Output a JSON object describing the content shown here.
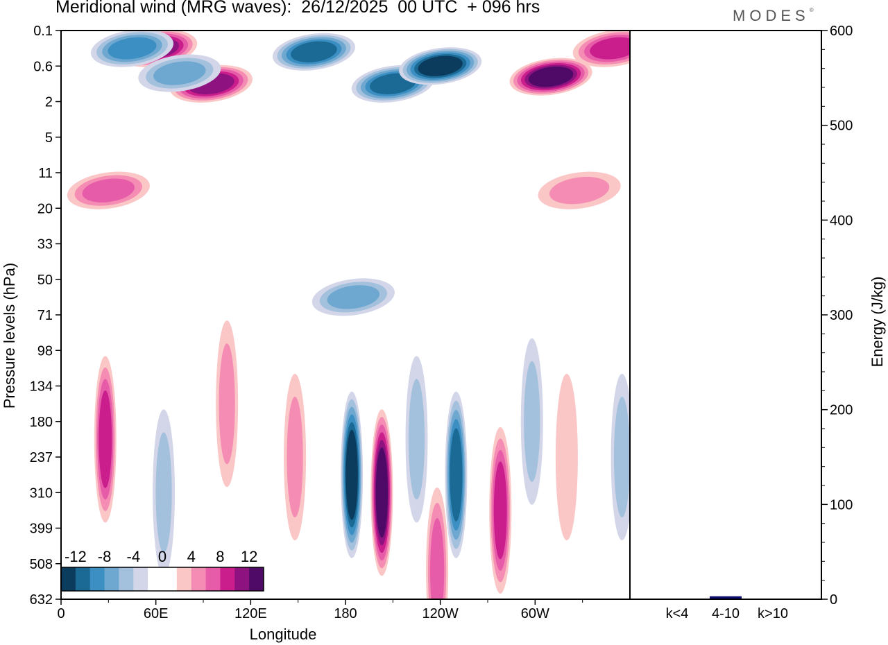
{
  "header": {
    "title": "Meridional wind (MRG waves):  26/12/2025  00 UTC  + 096 hrs",
    "logo": "MODES"
  },
  "chart_data": [
    {
      "type": "heatmap",
      "title": "Meridional wind (MRG waves):  26/12/2025  00 UTC  + 096 hrs",
      "xlabel": "Longitude",
      "ylabel": "Pressure levels (hPa)",
      "x_ticks": [
        "0",
        "60E",
        "120E",
        "180",
        "120W",
        "60W"
      ],
      "x_tick_degrees": [
        0,
        60,
        120,
        180,
        240,
        300
      ],
      "x_range": [
        0,
        360
      ],
      "y_ticks": [
        "0.1",
        "0.6",
        "2",
        "5",
        "11",
        "20",
        "33",
        "50",
        "71",
        "98",
        "134",
        "180",
        "237",
        "310",
        "399",
        "508",
        "632"
      ],
      "colorbar": {
        "labels": [
          "-12",
          "-8",
          "-4",
          "0",
          "4",
          "8",
          "12"
        ],
        "levels": [
          -14,
          -12,
          -10,
          -8,
          -6,
          -4,
          -2,
          2,
          4,
          6,
          8,
          10,
          12,
          14
        ],
        "colors": [
          "#0b3c5d",
          "#1b6a96",
          "#3b8fc2",
          "#6ea7cf",
          "#a3c0dd",
          "#d2d6e8",
          "#ffffff",
          "#ffffff",
          "#fbc6c6",
          "#f48cb4",
          "#e65ca8",
          "#c91e8c",
          "#8e1380",
          "#4e0a66"
        ]
      },
      "features": [
        {
          "lon": 60,
          "level": 0.5,
          "value": 12
        },
        {
          "lon": 95,
          "level": 1.5,
          "value": 12
        },
        {
          "lon": 45,
          "level": 0.5,
          "value": -10
        },
        {
          "lon": 75,
          "level": 1.2,
          "value": -8
        },
        {
          "lon": 160,
          "level": 0.6,
          "value": -12
        },
        {
          "lon": 210,
          "level": 1.5,
          "value": -12
        },
        {
          "lon": 240,
          "level": 1.0,
          "value": -14
        },
        {
          "lon": 310,
          "level": 1.3,
          "value": 14
        },
        {
          "lon": 350,
          "level": 0.5,
          "value": 10
        },
        {
          "lon": 30,
          "level": 4.5,
          "value": 8
        },
        {
          "lon": 185,
          "level": 7.5,
          "value": -8
        },
        {
          "lon": 328,
          "level": 4.5,
          "value": 6
        },
        {
          "lon": 28,
          "level": 11.5,
          "value": 10
        },
        {
          "lon": 65,
          "level": 13.0,
          "value": -6
        },
        {
          "lon": 105,
          "level": 10.5,
          "value": 6
        },
        {
          "lon": 148,
          "level": 12.0,
          "value": 6
        },
        {
          "lon": 184,
          "level": 12.5,
          "value": -14
        },
        {
          "lon": 203,
          "level": 13.0,
          "value": 14
        },
        {
          "lon": 225,
          "level": 11.5,
          "value": -6
        },
        {
          "lon": 238,
          "level": 15.2,
          "value": 8
        },
        {
          "lon": 250,
          "level": 12.5,
          "value": -12
        },
        {
          "lon": 278,
          "level": 13.5,
          "value": 10
        },
        {
          "lon": 298,
          "level": 11.0,
          "value": -6
        },
        {
          "lon": 320,
          "level": 12.0,
          "value": 4
        },
        {
          "lon": 355,
          "level": 12.0,
          "value": -6
        }
      ]
    },
    {
      "type": "bar",
      "categories": [
        "k<4",
        "4-10",
        "k>10"
      ],
      "values": [
        0,
        2,
        0
      ],
      "ylabel": "Energy (J/kg)",
      "ylim": [
        0,
        600
      ],
      "y_ticks": [
        "0",
        "100",
        "200",
        "300",
        "400",
        "500",
        "600"
      ],
      "y_tick_values": [
        0,
        100,
        200,
        300,
        400,
        500,
        600
      ],
      "bar_color": "#0a0a6e"
    }
  ]
}
